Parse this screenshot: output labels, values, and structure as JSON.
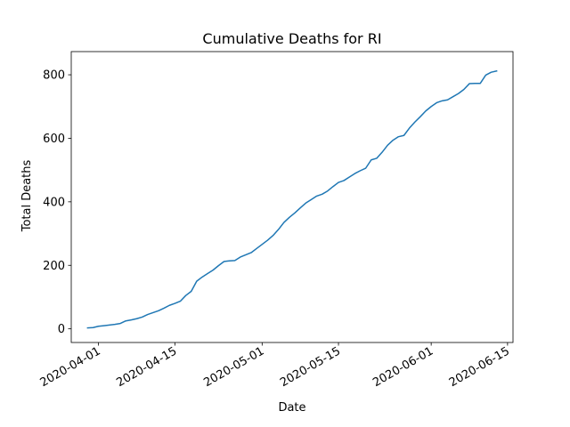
{
  "chart_data": {
    "type": "line",
    "title": "Cumulative Deaths for RI",
    "xlabel": "Date",
    "ylabel": "Total Deaths",
    "x_ticks": [
      "2020-04-01",
      "2020-04-15",
      "2020-05-01",
      "2020-05-15",
      "2020-06-01",
      "2020-06-15"
    ],
    "y_ticks": [
      0,
      200,
      400,
      600,
      800
    ],
    "xlim": [
      "2020-03-27",
      "2020-06-16"
    ],
    "ylim": [
      -43,
      873
    ],
    "grid": false,
    "series": [
      {
        "color": "#1f77b4",
        "x": [
          "2020-03-30",
          "2020-03-31",
          "2020-04-01",
          "2020-04-02",
          "2020-04-03",
          "2020-04-04",
          "2020-04-05",
          "2020-04-06",
          "2020-04-07",
          "2020-04-08",
          "2020-04-09",
          "2020-04-10",
          "2020-04-11",
          "2020-04-12",
          "2020-04-13",
          "2020-04-14",
          "2020-04-15",
          "2020-04-16",
          "2020-04-17",
          "2020-04-18",
          "2020-04-19",
          "2020-04-20",
          "2020-04-21",
          "2020-04-22",
          "2020-04-23",
          "2020-04-24",
          "2020-04-25",
          "2020-04-26",
          "2020-04-27",
          "2020-04-28",
          "2020-04-29",
          "2020-04-30",
          "2020-05-01",
          "2020-05-02",
          "2020-05-03",
          "2020-05-04",
          "2020-05-05",
          "2020-05-06",
          "2020-05-07",
          "2020-05-08",
          "2020-05-09",
          "2020-05-10",
          "2020-05-11",
          "2020-05-12",
          "2020-05-13",
          "2020-05-14",
          "2020-05-15",
          "2020-05-16",
          "2020-05-17",
          "2020-05-18",
          "2020-05-19",
          "2020-05-20",
          "2020-05-21",
          "2020-05-22",
          "2020-05-23",
          "2020-05-24",
          "2020-05-25",
          "2020-05-26",
          "2020-05-27",
          "2020-05-28",
          "2020-05-29",
          "2020-05-30",
          "2020-05-31",
          "2020-06-01",
          "2020-06-02",
          "2020-06-03",
          "2020-06-04",
          "2020-06-05",
          "2020-06-06",
          "2020-06-07",
          "2020-06-08",
          "2020-06-09",
          "2020-06-10",
          "2020-06-11",
          "2020-06-12",
          "2020-06-13"
        ],
        "y": [
          3,
          4,
          8,
          10,
          12,
          14,
          17,
          25,
          28,
          32,
          37,
          45,
          51,
          57,
          65,
          74,
          80,
          87,
          105,
          118,
          150,
          163,
          174,
          185,
          199,
          212,
          214,
          215,
          226,
          233,
          240,
          253,
          266,
          279,
          294,
          313,
          335,
          351,
          365,
          381,
          396,
          407,
          418,
          424,
          434,
          448,
          461,
          467,
          478,
          489,
          498,
          506,
          532,
          537,
          556,
          578,
          594,
          605,
          609,
          632,
          651,
          668,
          686,
          700,
          712,
          718,
          721,
          731,
          741,
          754,
          772,
          773,
          773,
          799,
          808,
          812
        ]
      }
    ]
  }
}
